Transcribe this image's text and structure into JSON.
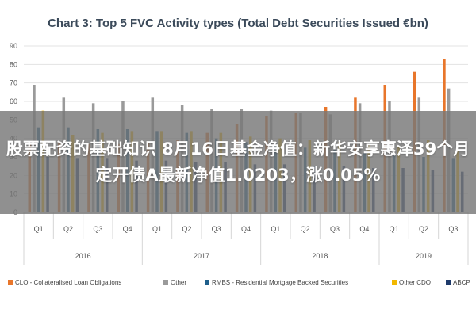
{
  "chart_data": {
    "type": "bar",
    "title": "Chart 3: Top 5 FVC Activity types (Total Debt Securities Issued €bn)",
    "ylim": [
      0,
      90
    ],
    "yticks": [
      0,
      10,
      20,
      30,
      40,
      50,
      60,
      70,
      80,
      90
    ],
    "categories": [
      "Q1",
      "Q2",
      "Q3",
      "Q4",
      "Q1",
      "Q2",
      "Q3",
      "Q4",
      "Q1",
      "Q2",
      "Q3",
      "Q4",
      "Q1",
      "Q2",
      "Q3"
    ],
    "years": [
      {
        "label": "2016",
        "start": 0,
        "count": 4
      },
      {
        "label": "2017",
        "start": 4,
        "count": 4
      },
      {
        "label": "2018",
        "start": 8,
        "count": 4
      },
      {
        "label": "2019",
        "start": 12,
        "count": 3
      }
    ],
    "series": [
      {
        "name": "CLO - Collateralised Loan Obligations",
        "color": "#e8762b",
        "values": [
          37,
          38,
          37,
          37,
          38,
          39,
          43,
          48,
          52,
          54,
          57,
          62,
          69,
          76,
          83
        ]
      },
      {
        "name": "Other",
        "color": "#9a9a9a",
        "values": [
          69,
          62,
          59,
          60,
          62,
          58,
          56,
          56,
          55,
          54,
          53,
          59,
          60,
          62,
          67
        ]
      },
      {
        "name": "RMBS - Residential Mortgage Backed Securities",
        "color": "#1f5f8b",
        "values": [
          46,
          46,
          45,
          45,
          44,
          43,
          40,
          38,
          37,
          35,
          34,
          32,
          31,
          30,
          29
        ]
      },
      {
        "name": "Other CDO",
        "color": "#f2b800",
        "values": [
          55,
          42,
          43,
          44,
          44,
          44,
          43,
          41,
          40,
          39,
          38,
          37,
          36,
          39,
          34
        ]
      },
      {
        "name": "ABCP",
        "color": "#1e3a6b",
        "values": [
          30,
          29,
          29,
          28,
          28,
          27,
          27,
          26,
          26,
          25,
          25,
          24,
          24,
          23,
          22
        ]
      }
    ],
    "legend_position": "bottom",
    "grid": true
  },
  "banner": {
    "text": "股票配资的基础知识 8月16日基金净值：新华安享惠泽39个月定开债A最新净值1.0203，涨0.05%"
  }
}
